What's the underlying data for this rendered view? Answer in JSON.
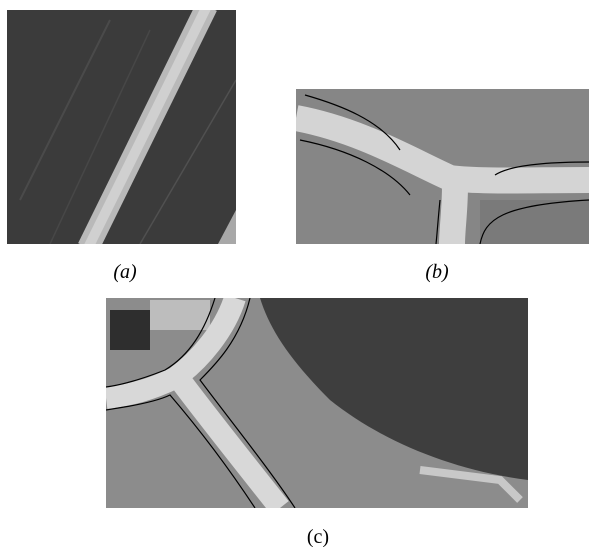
{
  "figure": {
    "panels": [
      {
        "label": "(a)"
      },
      {
        "label": "(b)"
      },
      {
        "label": "(c)"
      }
    ]
  }
}
